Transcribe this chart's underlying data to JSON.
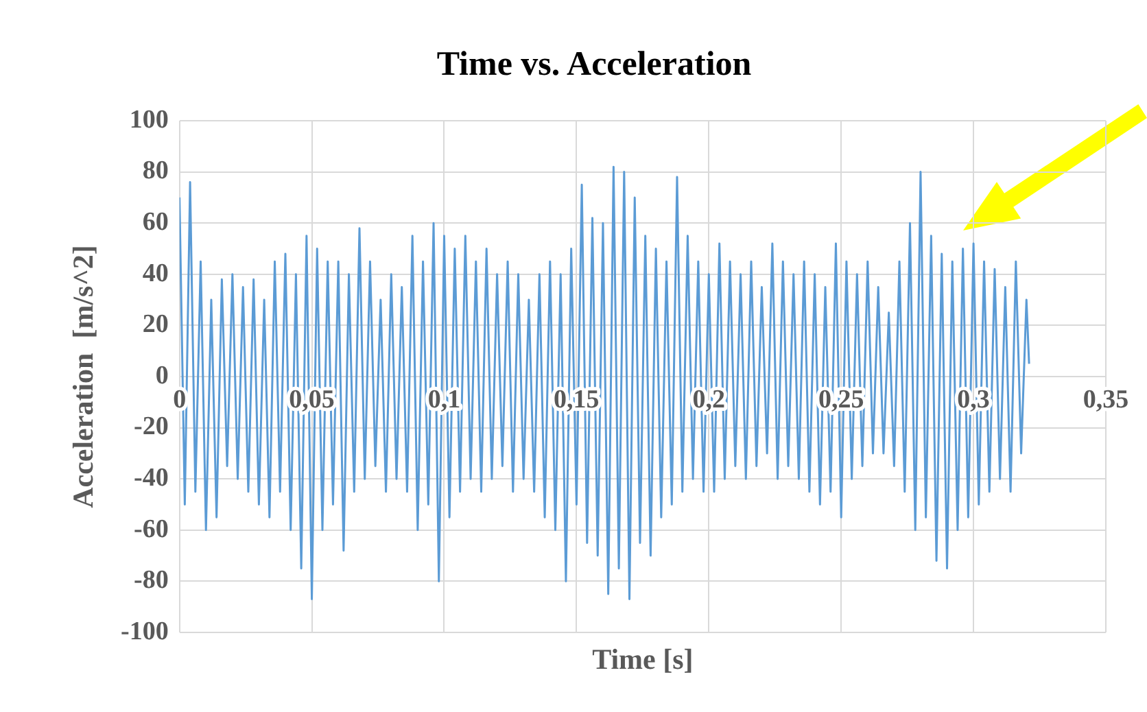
{
  "chart_data": {
    "type": "line",
    "title": "Time vs. Acceleration",
    "xlabel": "Time [s]",
    "ylabel": "Acceleration  [m/s^2]",
    "x": [
      0,
      0.002,
      0.004,
      0.006,
      0.008,
      0.01,
      0.012,
      0.014,
      0.016,
      0.018,
      0.02,
      0.022,
      0.024,
      0.026,
      0.028,
      0.03,
      0.032,
      0.034,
      0.036,
      0.038,
      0.04,
      0.042,
      0.044,
      0.046,
      0.048,
      0.05,
      0.052,
      0.054,
      0.056,
      0.058,
      0.06,
      0.062,
      0.064,
      0.066,
      0.068,
      0.07,
      0.072,
      0.074,
      0.076,
      0.078,
      0.08,
      0.082,
      0.084,
      0.086,
      0.088,
      0.09,
      0.092,
      0.094,
      0.096,
      0.098,
      0.1,
      0.102,
      0.104,
      0.106,
      0.108,
      0.11,
      0.112,
      0.114,
      0.116,
      0.118,
      0.12,
      0.122,
      0.124,
      0.126,
      0.128,
      0.13,
      0.132,
      0.134,
      0.136,
      0.138,
      0.14,
      0.142,
      0.144,
      0.146,
      0.148,
      0.15,
      0.152,
      0.154,
      0.156,
      0.158,
      0.16,
      0.162,
      0.164,
      0.166,
      0.168,
      0.17,
      0.172,
      0.174,
      0.176,
      0.178,
      0.18,
      0.182,
      0.184,
      0.186,
      0.188,
      0.19,
      0.192,
      0.194,
      0.196,
      0.198,
      0.2,
      0.202,
      0.204,
      0.206,
      0.208,
      0.21,
      0.212,
      0.214,
      0.216,
      0.218,
      0.22,
      0.222,
      0.224,
      0.226,
      0.228,
      0.23,
      0.232,
      0.234,
      0.236,
      0.238,
      0.24,
      0.242,
      0.244,
      0.246,
      0.248,
      0.25,
      0.252,
      0.254,
      0.256,
      0.258,
      0.26,
      0.262,
      0.264,
      0.266,
      0.268,
      0.27,
      0.272,
      0.274,
      0.276,
      0.278,
      0.28,
      0.282,
      0.284,
      0.286,
      0.288,
      0.29,
      0.292,
      0.294,
      0.296,
      0.298,
      0.3,
      0.302,
      0.304,
      0.306,
      0.308,
      0.31,
      0.312,
      0.314,
      0.316,
      0.318,
      0.32,
      0.321
    ],
    "series": [
      {
        "color": "#5b9bd5",
        "values": [
          70,
          -50,
          76,
          -45,
          45,
          -60,
          30,
          -55,
          38,
          -35,
          40,
          -40,
          35,
          -45,
          38,
          -50,
          30,
          -55,
          45,
          -45,
          48,
          -60,
          40,
          -75,
          55,
          -87,
          50,
          -60,
          45,
          -50,
          45,
          -68,
          40,
          -45,
          58,
          -40,
          45,
          -35,
          30,
          -45,
          40,
          -40,
          35,
          -45,
          55,
          -60,
          45,
          -50,
          60,
          -80,
          55,
          -55,
          50,
          -45,
          55,
          -40,
          45,
          -45,
          50,
          -40,
          40,
          -35,
          45,
          -45,
          40,
          -40,
          30,
          -45,
          40,
          -55,
          45,
          -60,
          40,
          -80,
          50,
          -50,
          75,
          -65,
          62,
          -70,
          60,
          -85,
          82,
          -75,
          80,
          -87,
          70,
          -65,
          55,
          -70,
          50,
          -55,
          45,
          -50,
          78,
          -45,
          55,
          -40,
          45,
          -45,
          40,
          -45,
          52,
          -40,
          45,
          -35,
          40,
          -40,
          45,
          -35,
          35,
          -30,
          52,
          -40,
          45,
          -35,
          40,
          -40,
          45,
          -45,
          40,
          -50,
          35,
          -45,
          52,
          -55,
          45,
          -40,
          40,
          -35,
          45,
          -30,
          35,
          -30,
          25,
          -35,
          45,
          -45,
          60,
          -60,
          80,
          -55,
          55,
          -72,
          48,
          -75,
          45,
          -60,
          50,
          -55,
          52,
          -50,
          45,
          -45,
          42,
          -40,
          35,
          -45,
          45,
          -30,
          30,
          5
        ]
      }
    ],
    "xlim": [
      0,
      0.35
    ],
    "xticks": [
      0,
      {
        "value": 0.05,
        "label": "0,05"
      },
      {
        "value": 0.1,
        "label": "0,1"
      },
      {
        "value": 0.15,
        "label": "0,15"
      },
      {
        "value": 0.2,
        "label": "0,2"
      },
      {
        "value": 0.25,
        "label": "0,25"
      },
      {
        "value": 0.3,
        "label": "0,3"
      },
      {
        "value": 0.35,
        "label": "0,35"
      }
    ],
    "ylim": [
      -100,
      100
    ],
    "yticks": [
      -100,
      -80,
      -60,
      -40,
      -20,
      0,
      20,
      40,
      60,
      80,
      100
    ],
    "grid": true,
    "legend": false,
    "marker": "none",
    "line_style": "solid"
  }
}
